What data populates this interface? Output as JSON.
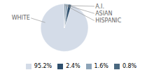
{
  "chart_data": {
    "type": "pie",
    "categories": [
      "WHITE",
      "A.I.",
      "ASIAN",
      "HISPANIC"
    ],
    "values": [
      95.2,
      2.4,
      1.6,
      0.8
    ],
    "value_labels": [
      "95.2%",
      "2.4%",
      "1.6%",
      "0.8%"
    ],
    "colors": [
      "#d4dce8",
      "#2e4f6d",
      "#8da4b8",
      "#4a6880"
    ],
    "legend": "bottom"
  }
}
